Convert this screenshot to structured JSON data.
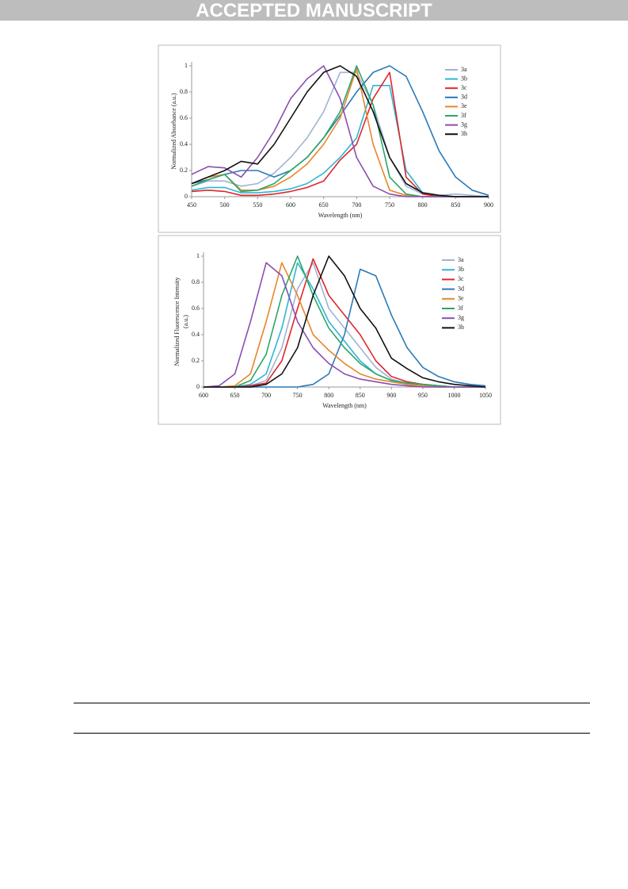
{
  "header": {
    "banner": "ACCEPTED MANUSCRIPT"
  },
  "chart_data": [
    {
      "type": "line",
      "x_label": "Wavelength (nm)",
      "y_label": [
        "Normalized Absorbance (a.u.)"
      ],
      "x": [
        450,
        475,
        500,
        525,
        550,
        575,
        600,
        625,
        650,
        675,
        700,
        725,
        750,
        775,
        800,
        825,
        850,
        875,
        900
      ],
      "xlim": [
        450,
        900
      ],
      "xticks": [
        450,
        500,
        550,
        600,
        650,
        700,
        750,
        800,
        850,
        900
      ],
      "ylim": [
        0,
        1
      ],
      "yticks": [
        0,
        0.2,
        0.4,
        0.6,
        0.8,
        1
      ],
      "series": [
        {
          "name": "3a",
          "color": "#9fb4d6",
          "values": [
            0.08,
            0.12,
            0.12,
            0.08,
            0.1,
            0.18,
            0.3,
            0.45,
            0.65,
            0.95,
            0.95,
            0.7,
            0.3,
            0.08,
            0.02,
            0.01,
            0.02,
            0.01,
            0
          ]
        },
        {
          "name": "3b",
          "color": "#2fb5d6",
          "values": [
            0.05,
            0.07,
            0.07,
            0.03,
            0.03,
            0.04,
            0.06,
            0.1,
            0.18,
            0.3,
            0.45,
            0.85,
            0.85,
            0.2,
            0.03,
            0.01,
            0,
            0,
            0
          ]
        },
        {
          "name": "3c",
          "color": "#e0262b",
          "values": [
            0.04,
            0.05,
            0.04,
            0.01,
            0.01,
            0.02,
            0.04,
            0.07,
            0.12,
            0.28,
            0.4,
            0.75,
            0.95,
            0.15,
            0.02,
            0,
            0,
            0,
            0
          ]
        },
        {
          "name": "3d",
          "color": "#2a7ab8",
          "values": [
            0.1,
            0.13,
            0.17,
            0.2,
            0.2,
            0.15,
            0.2,
            0.3,
            0.45,
            0.62,
            0.8,
            0.95,
            1,
            0.92,
            0.65,
            0.35,
            0.15,
            0.05,
            0.01
          ]
        },
        {
          "name": "3e",
          "color": "#e8862a",
          "values": [
            0.1,
            0.15,
            0.17,
            0.05,
            0.05,
            0.08,
            0.15,
            0.25,
            0.4,
            0.6,
            0.98,
            0.4,
            0.05,
            0.01,
            0,
            0,
            0,
            0,
            0
          ]
        },
        {
          "name": "3f",
          "color": "#2aa66a",
          "values": [
            0.08,
            0.13,
            0.17,
            0.04,
            0.05,
            0.1,
            0.2,
            0.3,
            0.45,
            0.65,
            1,
            0.7,
            0.15,
            0.02,
            0,
            0,
            0,
            0,
            0
          ]
        },
        {
          "name": "3g",
          "color": "#8a4fb0",
          "values": [
            0.17,
            0.23,
            0.22,
            0.15,
            0.3,
            0.5,
            0.75,
            0.9,
            1,
            0.75,
            0.3,
            0.08,
            0.02,
            0,
            0,
            0,
            0,
            0,
            0
          ]
        },
        {
          "name": "3h",
          "color": "#111111",
          "values": [
            0.1,
            0.15,
            0.2,
            0.27,
            0.25,
            0.4,
            0.6,
            0.8,
            0.95,
            1,
            0.92,
            0.65,
            0.3,
            0.1,
            0.03,
            0.01,
            0,
            0,
            0
          ]
        }
      ]
    },
    {
      "type": "line",
      "x_label": "Wavelength (nm)",
      "y_label": [
        "Normalized Fluorescence Intensity",
        "(a.u.)"
      ],
      "x": [
        600,
        625,
        650,
        675,
        700,
        725,
        750,
        775,
        800,
        825,
        850,
        875,
        900,
        925,
        950,
        975,
        1000,
        1025,
        1050
      ],
      "xlim": [
        600,
        1050
      ],
      "xticks": [
        600,
        650,
        700,
        750,
        800,
        850,
        900,
        950,
        1000,
        1050
      ],
      "ylim": [
        0,
        1
      ],
      "yticks": [
        0,
        0.2,
        0.4,
        0.6,
        0.8,
        1
      ],
      "series": [
        {
          "name": "3a",
          "color": "#9fb4d6",
          "values": [
            0,
            0,
            0,
            0.01,
            0.05,
            0.3,
            0.75,
            0.95,
            0.6,
            0.45,
            0.3,
            0.15,
            0.06,
            0.03,
            0.02,
            0.01,
            0,
            0,
            0
          ]
        },
        {
          "name": "3b",
          "color": "#2fb5d6",
          "values": [
            0,
            0,
            0,
            0.02,
            0.1,
            0.45,
            0.95,
            0.75,
            0.5,
            0.35,
            0.2,
            0.1,
            0.05,
            0.03,
            0.02,
            0.01,
            0,
            0,
            0
          ]
        },
        {
          "name": "3c",
          "color": "#e0262b",
          "values": [
            0,
            0,
            0,
            0.01,
            0.03,
            0.2,
            0.6,
            0.98,
            0.7,
            0.55,
            0.4,
            0.2,
            0.08,
            0.04,
            0.02,
            0.01,
            0,
            0,
            0
          ]
        },
        {
          "name": "3d",
          "color": "#2a7ab8",
          "values": [
            0,
            0,
            0,
            0,
            0,
            0,
            0,
            0.02,
            0.1,
            0.4,
            0.9,
            0.85,
            0.55,
            0.3,
            0.15,
            0.08,
            0.04,
            0.02,
            0.01
          ]
        },
        {
          "name": "3e",
          "color": "#e8862a",
          "values": [
            0,
            0,
            0.01,
            0.1,
            0.5,
            0.95,
            0.7,
            0.4,
            0.28,
            0.18,
            0.1,
            0.06,
            0.04,
            0.02,
            0.01,
            0,
            0,
            0,
            0
          ]
        },
        {
          "name": "3f",
          "color": "#2aa66a",
          "values": [
            0,
            0,
            0,
            0.05,
            0.25,
            0.7,
            1,
            0.7,
            0.45,
            0.3,
            0.18,
            0.1,
            0.05,
            0.03,
            0.02,
            0.01,
            0,
            0,
            0
          ]
        },
        {
          "name": "3g",
          "color": "#8a4fb0",
          "values": [
            0,
            0.01,
            0.1,
            0.5,
            0.95,
            0.85,
            0.5,
            0.3,
            0.18,
            0.1,
            0.06,
            0.04,
            0.02,
            0.01,
            0,
            0,
            0,
            0,
            0
          ]
        },
        {
          "name": "3h",
          "color": "#111111",
          "values": [
            0,
            0,
            0,
            0,
            0.02,
            0.1,
            0.3,
            0.7,
            1,
            0.85,
            0.6,
            0.45,
            0.22,
            0.14,
            0.07,
            0.04,
            0.02,
            0.01,
            0
          ]
        }
      ]
    }
  ]
}
